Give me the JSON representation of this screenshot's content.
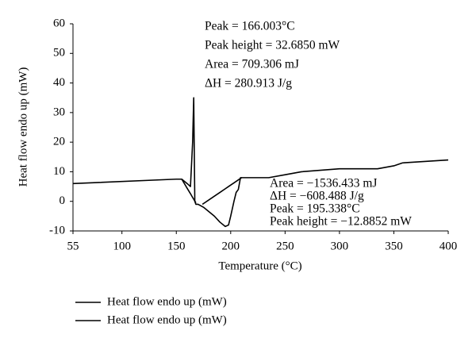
{
  "chart_data": {
    "type": "line",
    "xlabel": "Temperature (°C)",
    "ylabel": "Heat flow endo up (mW)",
    "x": [
      55,
      150,
      155,
      160,
      163,
      165,
      166,
      167,
      168,
      170,
      174,
      175,
      185,
      190,
      195,
      198,
      200,
      203,
      205,
      207,
      209,
      210,
      215,
      235,
      250,
      265,
      300,
      335,
      350,
      358,
      400
    ],
    "series": [
      {
        "name": "Heat flow endo up (mW)",
        "color": "#000000",
        "values": [
          6,
          7.5,
          7.5,
          6,
          5,
          20,
          35,
          0,
          -1,
          -1,
          -1.8,
          -2,
          -5,
          -7,
          -8.5,
          -8,
          -5,
          0,
          3,
          4,
          8,
          8,
          8,
          8,
          9,
          10,
          11,
          11,
          12,
          13,
          14
        ]
      },
      {
        "name": "Heat flow endo up (mW)",
        "color": "#000000",
        "values": [
          null,
          null,
          7.5,
          4.4,
          2.6,
          1.3,
          0.7,
          0.1,
          -0.5,
          null,
          -1,
          -0.75,
          1.75,
          3,
          4.25,
          5,
          5.5,
          6.25,
          6.75,
          7.25,
          7.75,
          8,
          null,
          null,
          null,
          null,
          null,
          null,
          null,
          null,
          null
        ]
      }
    ],
    "xlim": [
      55,
      400
    ],
    "xticks": [
      55,
      100,
      150,
      200,
      250,
      300,
      350,
      400
    ],
    "ylim": [
      -10,
      60
    ],
    "yticks": [
      -10,
      0,
      10,
      20,
      30,
      40,
      50,
      60
    ],
    "annotations": [
      [
        "Peak = 166.003°C",
        "Peak height = 32.6850 mW",
        "Area = 709.306 mJ",
        "ΔH = 280.913 J/g"
      ],
      [
        "Area = −1536.433 mJ",
        "ΔH = −608.488 J/g",
        "Peak = 195.338°C",
        "Peak height = −12.8852 mW"
      ]
    ]
  }
}
